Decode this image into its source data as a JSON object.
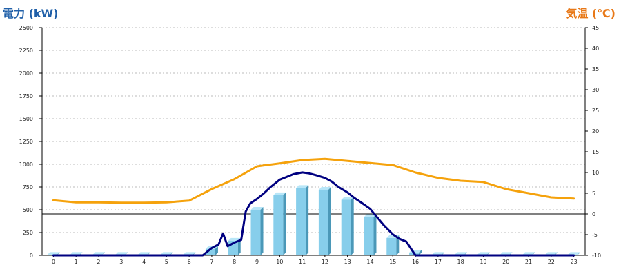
{
  "chart_data": {
    "type": "bar+line",
    "left_axis_title": "電力 (kW)",
    "right_axis_title": "気温 (℃)",
    "x_categories": [
      "0",
      "1",
      "2",
      "3",
      "4",
      "5",
      "6",
      "7",
      "8",
      "9",
      "10",
      "11",
      "12",
      "13",
      "14",
      "15",
      "16",
      "17",
      "18",
      "19",
      "20",
      "21",
      "22",
      "23"
    ],
    "y_left": {
      "min": 0,
      "max": 2500,
      "ticks": [
        "0",
        "250",
        "500",
        "750",
        "1000",
        "1250",
        "1500",
        "1750",
        "2000",
        "2250",
        "2500"
      ]
    },
    "y_right": {
      "min": -10,
      "max": 45,
      "ticks": [
        "-10",
        "-5",
        "0",
        "5",
        "10",
        "15",
        "20",
        "25",
        "30",
        "35",
        "40",
        "45"
      ]
    },
    "grid": true,
    "series": [
      {
        "type": "bar",
        "axis": "left",
        "color": "#87ceeb",
        "x": [
          0,
          1,
          2,
          3,
          4,
          5,
          6,
          7,
          8,
          9,
          10,
          11,
          12,
          13,
          14,
          15,
          16,
          17,
          18,
          19,
          20,
          21,
          22,
          23
        ],
        "values": [
          5,
          5,
          5,
          5,
          5,
          5,
          5,
          70,
          160,
          500,
          660,
          740,
          720,
          610,
          420,
          190,
          30,
          5,
          5,
          5,
          5,
          5,
          5,
          5
        ]
      },
      {
        "type": "line",
        "axis": "left",
        "color": "#000080",
        "x": [
          0,
          1,
          2,
          3,
          4,
          5,
          6,
          6.6,
          7,
          7.3,
          7.5,
          7.7,
          8,
          8.3,
          8.5,
          8.7,
          9,
          9.3,
          9.6,
          10,
          10.3,
          10.6,
          11,
          11.3,
          11.6,
          12,
          12.3,
          12.6,
          13,
          13.3,
          13.6,
          14,
          14.3,
          14.6,
          15,
          15.3,
          15.6,
          16,
          17,
          18,
          19,
          20,
          21,
          22,
          23
        ],
        "values": [
          0,
          0,
          0,
          0,
          0,
          0,
          0,
          0,
          80,
          120,
          240,
          100,
          140,
          170,
          480,
          570,
          620,
          680,
          750,
          830,
          860,
          890,
          910,
          900,
          880,
          850,
          810,
          750,
          690,
          630,
          580,
          510,
          420,
          330,
          230,
          180,
          150,
          0,
          0,
          0,
          0,
          0,
          0,
          0,
          0
        ]
      },
      {
        "type": "line",
        "axis": "right",
        "color": "#f5a20c",
        "x": [
          0,
          1,
          2,
          3,
          4,
          5,
          6,
          7,
          8,
          9,
          10,
          11,
          12,
          13,
          14,
          15,
          16,
          17,
          18,
          19,
          20,
          21,
          22,
          23
        ],
        "values": [
          3.3,
          2.8,
          2.8,
          2.7,
          2.7,
          2.8,
          3.2,
          6,
          8.4,
          11.5,
          12.2,
          13,
          13.3,
          12.8,
          12.3,
          11.8,
          10,
          8.7,
          8,
          7.7,
          6,
          5,
          4,
          3.7
        ]
      }
    ]
  }
}
